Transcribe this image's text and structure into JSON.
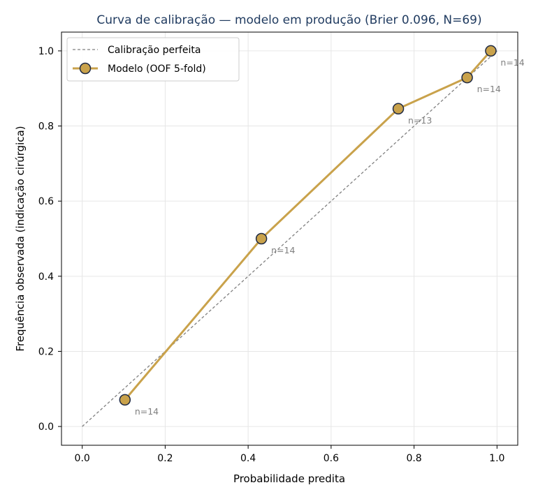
{
  "chart_data": {
    "type": "line",
    "title": "Curva de calibração — modelo em produção (Brier 0.096, N=69)",
    "xlabel": "Probabilidade predita",
    "ylabel": "Frequência observada (indicação cirúrgica)",
    "xlim": [
      -0.05,
      1.05
    ],
    "ylim": [
      -0.05,
      1.05
    ],
    "xticks": [
      "0.0",
      "0.2",
      "0.4",
      "0.6",
      "0.8",
      "1.0"
    ],
    "yticks": [
      "0.0",
      "0.2",
      "0.4",
      "0.6",
      "0.8",
      "1.0"
    ],
    "grid": true,
    "legend_position": "top-left",
    "series": [
      {
        "name": "Calibração perfeita",
        "style": "dashed",
        "color": "#808080",
        "x": [
          0,
          1
        ],
        "y": [
          0,
          1
        ]
      },
      {
        "name": "Modelo (OOF 5-fold)",
        "style": "line-marker",
        "color": "#c9a24b",
        "marker_edge": "#1f2a44",
        "x": [
          0.103,
          0.432,
          0.762,
          0.928,
          0.985
        ],
        "y": [
          0.071,
          0.5,
          0.846,
          0.929,
          1.0
        ],
        "annotations": [
          "n=14",
          "n=14",
          "n=13",
          "n=14",
          "n=14"
        ]
      }
    ]
  }
}
